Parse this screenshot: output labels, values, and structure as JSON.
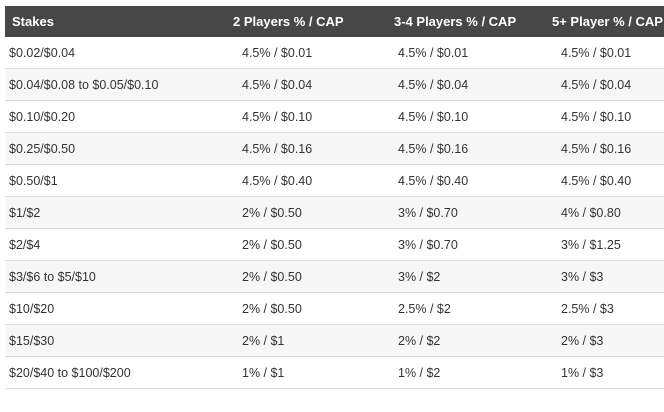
{
  "table": {
    "headers": [
      "Stakes",
      "2 Players % / CAP",
      "3-4 Players % / CAP",
      "5+ Player % / CAP"
    ],
    "rows": [
      [
        "$0.02/$0.04",
        "4.5% / $0.01",
        "4.5% / $0.01",
        "4.5% / $0.01"
      ],
      [
        "$0.04/$0.08 to $0.05/$0.10",
        "4.5% / $0.04",
        "4.5% / $0.04",
        "4.5% / $0.04"
      ],
      [
        "$0.10/$0.20",
        "4.5% / $0.10",
        "4.5% / $0.10",
        "4.5% / $0.10"
      ],
      [
        "$0.25/$0.50",
        "4.5% / $0.16",
        "4.5% / $0.16",
        "4.5% / $0.16"
      ],
      [
        "$0.50/$1",
        "4.5% / $0.40",
        "4.5% / $0.40",
        "4.5% / $0.40"
      ],
      [
        "$1/$2",
        "2% / $0.50",
        "3% / $0.70",
        "4% / $0.80"
      ],
      [
        "$2/$4",
        "2% / $0.50",
        "3% / $0.70",
        "3% / $1.25"
      ],
      [
        "$3/$6 to $5/$10",
        "2% / $0.50",
        "3% / $2",
        "3% / $3"
      ],
      [
        "$10/$20",
        "2% / $0.50",
        "2.5% / $2",
        "2.5% / $3"
      ],
      [
        "$15/$30",
        "2% / $1",
        "2% / $2",
        "2% / $3"
      ],
      [
        "$20/$40 to $100/$200",
        "1% / $1",
        "1% / $2",
        "1% / $3"
      ]
    ]
  }
}
